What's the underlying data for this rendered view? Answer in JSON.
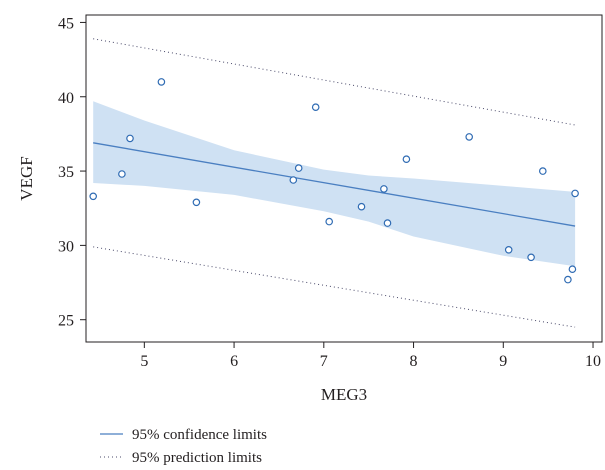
{
  "chart_data": {
    "type": "scatter",
    "title": "",
    "xlabel": "MEG3",
    "ylabel": "VEGF",
    "xlim": [
      4.35,
      10.1
    ],
    "ylim": [
      23.5,
      45.5
    ],
    "xticks": [
      5,
      6,
      7,
      8,
      9,
      10
    ],
    "yticks": [
      25,
      30,
      35,
      40,
      45
    ],
    "grid": false,
    "colors": {
      "points": "#2f6bb3",
      "fit_line": "#4a7fc1",
      "band": "#cfe1f3",
      "prediction": "#4a4a6a",
      "axis": "#231f20"
    },
    "points": [
      {
        "x": 4.43,
        "y": 33.3
      },
      {
        "x": 4.75,
        "y": 34.8
      },
      {
        "x": 4.84,
        "y": 37.2
      },
      {
        "x": 5.19,
        "y": 41.0
      },
      {
        "x": 5.58,
        "y": 32.9
      },
      {
        "x": 6.66,
        "y": 34.4
      },
      {
        "x": 6.72,
        "y": 35.2
      },
      {
        "x": 6.91,
        "y": 39.3
      },
      {
        "x": 7.06,
        "y": 31.6
      },
      {
        "x": 7.42,
        "y": 32.6
      },
      {
        "x": 7.67,
        "y": 33.8
      },
      {
        "x": 7.71,
        "y": 31.5
      },
      {
        "x": 7.92,
        "y": 35.8
      },
      {
        "x": 8.62,
        "y": 37.3
      },
      {
        "x": 9.06,
        "y": 29.7
      },
      {
        "x": 9.31,
        "y": 29.2
      },
      {
        "x": 9.44,
        "y": 35.0
      },
      {
        "x": 9.72,
        "y": 27.7
      },
      {
        "x": 9.77,
        "y": 28.4
      },
      {
        "x": 9.8,
        "y": 33.5
      }
    ],
    "fit": {
      "x": [
        4.43,
        9.8
      ],
      "y": [
        36.9,
        31.3
      ]
    },
    "confidence_band": {
      "x": [
        4.43,
        5.0,
        6.0,
        7.0,
        7.5,
        8.0,
        9.0,
        9.8
      ],
      "upper": [
        39.7,
        38.4,
        36.4,
        35.1,
        34.7,
        34.5,
        34.0,
        33.6
      ],
      "lower": [
        34.2,
        34.0,
        33.4,
        32.3,
        31.6,
        30.6,
        29.3,
        28.6
      ]
    },
    "prediction_limits": {
      "x": [
        4.43,
        9.8
      ],
      "upper": [
        43.9,
        38.1
      ],
      "lower": [
        29.9,
        24.5
      ]
    },
    "legend": {
      "placement": "bottom-left",
      "entries": [
        {
          "label": "95% confidence limits",
          "style": "solid"
        },
        {
          "label": "95% prediction limits",
          "style": "dotted"
        }
      ]
    }
  }
}
